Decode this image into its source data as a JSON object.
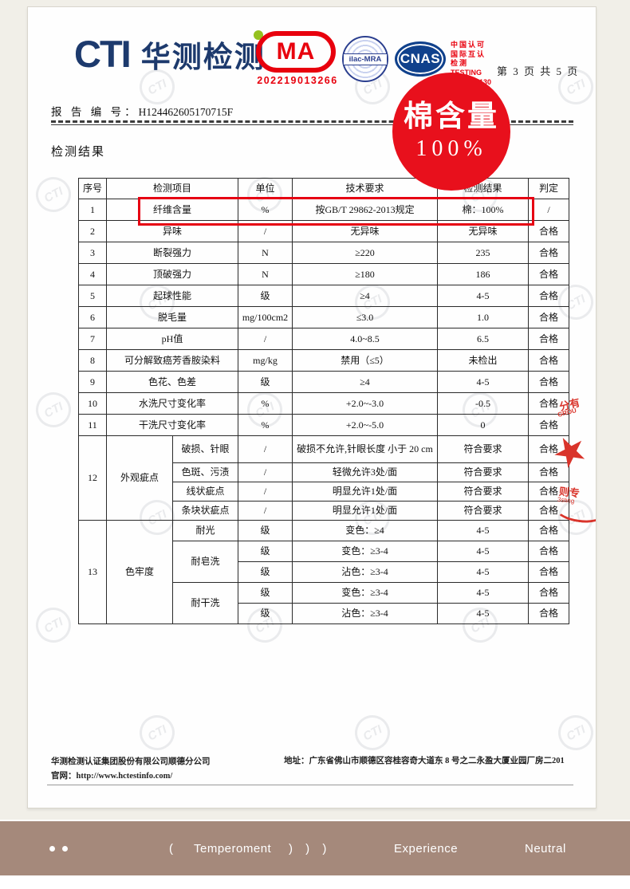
{
  "header": {
    "logo_cti": "CTI",
    "logo_name": "华测检测",
    "cma_label": "MA",
    "cma_number": "202219013266",
    "ilac_label": "ilac-MRA",
    "cnas_label": "CNAS",
    "accreditation_lines": [
      "中国认可",
      "国际互认",
      "检测",
      "TESTING",
      "CNASL5130"
    ],
    "page_info": "第 3 页 共 5 页"
  },
  "report": {
    "label": "报 告 编 号：",
    "number": "H124462605170715F"
  },
  "badge": {
    "title": "棉含量",
    "value": "100%"
  },
  "section_title": "检测结果",
  "table": {
    "headers": [
      "序号",
      "检测项目",
      "单位",
      "技术要求",
      "检测结果",
      "判定"
    ],
    "rows": [
      {
        "no": "1",
        "item": "纤维含量",
        "unit": "%",
        "req": "按GB/T 29862-2013规定",
        "result": "棉：100%",
        "verdict": "/"
      },
      {
        "no": "2",
        "item": "异味",
        "unit": "/",
        "req": "无异味",
        "result": "无异味",
        "verdict": "合格"
      },
      {
        "no": "3",
        "item": "断裂强力",
        "unit": "N",
        "req": "≥220",
        "result": "235",
        "verdict": "合格"
      },
      {
        "no": "4",
        "item": "顶破强力",
        "unit": "N",
        "req": "≥180",
        "result": "186",
        "verdict": "合格"
      },
      {
        "no": "5",
        "item": "起球性能",
        "unit": "级",
        "req": "≥4",
        "result": "4-5",
        "verdict": "合格"
      },
      {
        "no": "6",
        "item": "脱毛量",
        "unit": "mg/100cm2",
        "req": "≤3.0",
        "result": "1.0",
        "verdict": "合格"
      },
      {
        "no": "7",
        "item": "pH值",
        "unit": "/",
        "req": "4.0~8.5",
        "result": "6.5",
        "verdict": "合格"
      },
      {
        "no": "8",
        "item": "可分解致癌芳香胺染料",
        "unit": "mg/kg",
        "req": "禁用（≤5）",
        "result": "未检出",
        "verdict": "合格"
      },
      {
        "no": "9",
        "item": "色花、色差",
        "unit": "级",
        "req": "≥4",
        "result": "4-5",
        "verdict": "合格"
      },
      {
        "no": "10",
        "item": "水洗尺寸变化率",
        "unit": "%",
        "req": "+2.0~-3.0",
        "result": "-0.5",
        "verdict": "合格"
      },
      {
        "no": "11",
        "item": "干洗尺寸变化率",
        "unit": "%",
        "req": "+2.0~-5.0",
        "result": "0",
        "verdict": "合格"
      }
    ],
    "row12": {
      "no": "12",
      "group": "外观疵点",
      "subs": [
        {
          "item": "破损、针眼",
          "unit": "/",
          "req": "破损不允许,针眼长度 小于 20 cm",
          "result": "符合要求",
          "verdict": "合格"
        },
        {
          "item": "色斑、污渍",
          "unit": "/",
          "req": "轻微允许3处/面",
          "result": "符合要求",
          "verdict": "合格"
        },
        {
          "item": "线状疵点",
          "unit": "/",
          "req": "明显允许1处/面",
          "result": "符合要求",
          "verdict": "合格"
        },
        {
          "item": "条块状疵点",
          "unit": "/",
          "req": "明显允许1处/面",
          "result": "符合要求",
          "verdict": "合格"
        }
      ]
    },
    "row13": {
      "no": "13",
      "group": "色牢度",
      "groups": [
        {
          "name": "耐光",
          "rows": [
            {
              "unit": "级",
              "req": "变色：≥4",
              "result": "4-5",
              "verdict": "合格"
            }
          ]
        },
        {
          "name": "耐皂洗",
          "rows": [
            {
              "unit": "级",
              "req": "变色：≥3-4",
              "result": "4-5",
              "verdict": "合格"
            },
            {
              "unit": "级",
              "req": "沾色：≥3-4",
              "result": "4-5",
              "verdict": "合格"
            }
          ]
        },
        {
          "name": "耐干洗",
          "rows": [
            {
              "unit": "级",
              "req": "变色：≥3-4",
              "result": "4-5",
              "verdict": "合格"
            },
            {
              "unit": "级",
              "req": "沾色：≥3-4",
              "result": "4-5",
              "verdict": "合格"
            }
          ]
        }
      ]
    }
  },
  "seal_fragment": {
    "line1": "分有",
    "line2": "GROU",
    "line3": "则专",
    "line4": "3sting"
  },
  "footer": {
    "company": "华测检测认证集团股份有限公司顺德分公司",
    "website_label": "官网：",
    "website": "http://www.hctestinfo.com/",
    "address_label": "地址：",
    "address": "广东省佛山市顺德区容桂容奇大道东 8 号之二永盈大厦业园厂房二201"
  },
  "bottom_bar": {
    "paren_open": "(",
    "tab1": "Temperoment",
    "paren_close": ") ) )",
    "tab2": "Experience",
    "tab3": "Neutral"
  },
  "watermark": {
    "text": "CTI"
  },
  "colors": {
    "accent_red": "#e60012",
    "badge_red": "#e8101c",
    "navy": "#1d3a6d",
    "green_dot": "#95c11f",
    "cnas_blue": "#10418c",
    "bar_taupe": "#a5897b",
    "background_cream": "#f1efe8"
  }
}
